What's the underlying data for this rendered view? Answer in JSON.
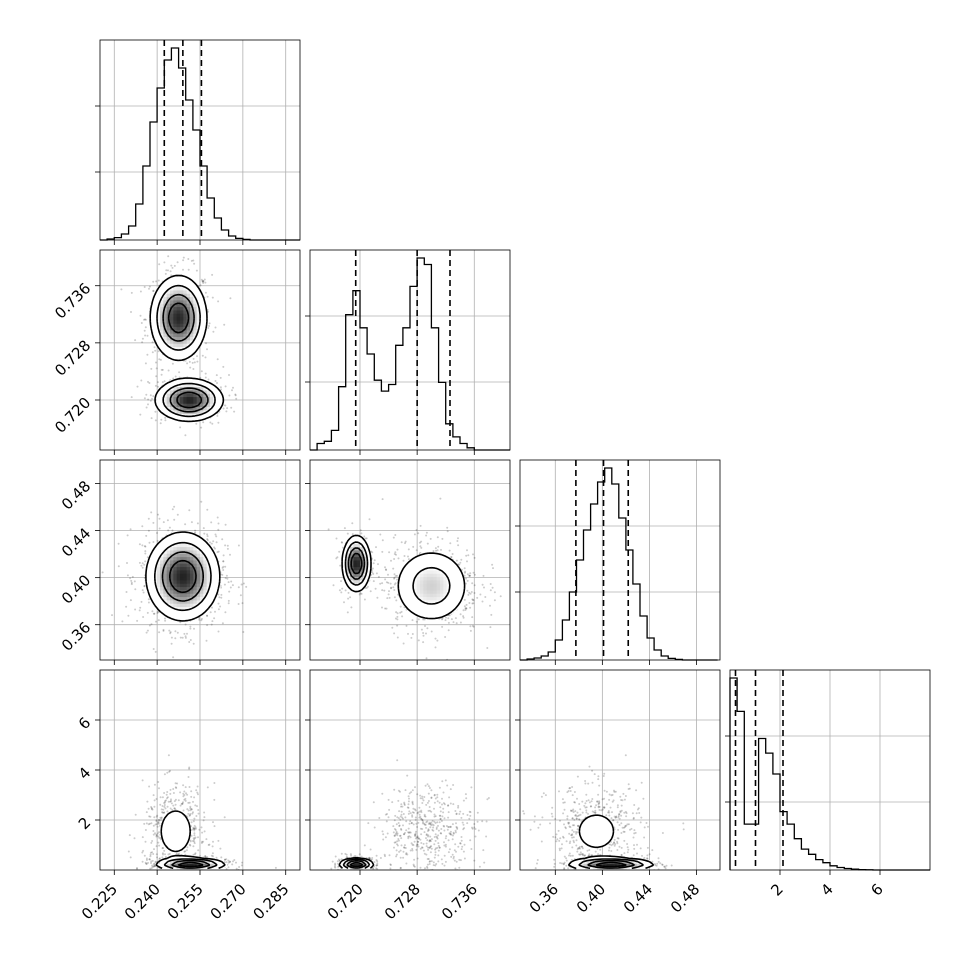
{
  "chart_data": {
    "type": "corner",
    "grid": true,
    "colors": {
      "line": "#000000",
      "grid": "#b0b0b0",
      "scatter": "#000000"
    },
    "parameters": [
      {
        "range": [
          0.22,
          0.29
        ],
        "ticks": [
          0.225,
          0.24,
          0.255,
          0.27,
          0.285
        ],
        "tick_labels": [
          "0.225",
          "0.240",
          "0.255",
          "0.270",
          "0.285"
        ],
        "mean": 0.249,
        "sd": 0.0065,
        "quantiles": [
          0.2425,
          0.249,
          0.2555
        ]
      },
      {
        "range": [
          0.713,
          0.741
        ],
        "ticks": [
          0.72,
          0.728,
          0.736
        ],
        "tick_labels": [
          "0.720",
          "0.728",
          "0.736"
        ],
        "quantiles": [
          0.7194,
          0.728,
          0.7326
        ]
      },
      {
        "range": [
          0.33,
          0.5
        ],
        "ticks": [
          0.36,
          0.4,
          0.44,
          0.48
        ],
        "tick_labels": [
          "0.36",
          "0.40",
          "0.44",
          "0.48"
        ],
        "mean": 0.401,
        "sd": 0.019,
        "quantiles": [
          0.3775,
          0.401,
          0.422
        ]
      },
      {
        "range": [
          0.0,
          8.0
        ],
        "ticks": [
          2,
          4,
          6
        ],
        "tick_labels": [
          "2",
          "4",
          "6"
        ],
        "quantiles": [
          0.22,
          1.02,
          2.12
        ]
      }
    ],
    "histograms": [
      {
        "bins": [
          0.22,
          0.2225,
          0.225,
          0.2275,
          0.23,
          0.2325,
          0.235,
          0.2375,
          0.24,
          0.2425,
          0.245,
          0.2475,
          0.25,
          0.2525,
          0.255,
          0.2575,
          0.26,
          0.2625,
          0.265,
          0.2675,
          0.27,
          0.2725,
          0.275,
          0.2775,
          0.28,
          0.2825,
          0.285,
          0.2875,
          0.29
        ],
        "counts": [
          0,
          0.005,
          0.012,
          0.03,
          0.07,
          0.18,
          0.37,
          0.59,
          0.76,
          0.9,
          0.96,
          0.86,
          0.7,
          0.55,
          0.37,
          0.21,
          0.11,
          0.05,
          0.02,
          0.008,
          0.003,
          0,
          0,
          0,
          0,
          0,
          0,
          0
        ]
      },
      {
        "bins": [
          0.713,
          0.714,
          0.715,
          0.716,
          0.717,
          0.718,
          0.719,
          0.72,
          0.721,
          0.722,
          0.723,
          0.724,
          0.725,
          0.726,
          0.727,
          0.728,
          0.729,
          0.73,
          0.731,
          0.732,
          0.733,
          0.734,
          0.735,
          0.736,
          0.737,
          0.738,
          0.739,
          0.74,
          0.741
        ],
        "counts": [
          0,
          0.03,
          0.04,
          0.09,
          0.29,
          0.62,
          0.73,
          0.56,
          0.44,
          0.32,
          0.27,
          0.3,
          0.48,
          0.56,
          0.75,
          0.88,
          0.85,
          0.56,
          0.31,
          0.12,
          0.06,
          0.03,
          0.01,
          0,
          0,
          0,
          0,
          0
        ]
      },
      {
        "bins": [
          0.33,
          0.336,
          0.342,
          0.348,
          0.354,
          0.36,
          0.366,
          0.372,
          0.378,
          0.384,
          0.39,
          0.396,
          0.402,
          0.408,
          0.414,
          0.42,
          0.426,
          0.432,
          0.438,
          0.444,
          0.45,
          0.456,
          0.462,
          0.468,
          0.474,
          0.48,
          0.486,
          0.492,
          0.498
        ],
        "counts": [
          0,
          0.005,
          0.01,
          0.02,
          0.04,
          0.1,
          0.2,
          0.34,
          0.5,
          0.65,
          0.78,
          0.89,
          0.96,
          0.88,
          0.71,
          0.55,
          0.38,
          0.22,
          0.11,
          0.05,
          0.02,
          0.008,
          0.003,
          0,
          0,
          0,
          0,
          0
        ]
      },
      {
        "bins": [
          0.0,
          0.286,
          0.571,
          0.857,
          1.143,
          1.429,
          1.714,
          2.0,
          2.286,
          2.571,
          2.857,
          3.143,
          3.429,
          3.714,
          4.0,
          4.286,
          4.571,
          4.857,
          5.143,
          5.429,
          5.714,
          6.0,
          6.286,
          6.571,
          6.857,
          7.143,
          7.429,
          7.714,
          8.0
        ],
        "counts": [
          0.92,
          0.76,
          0.22,
          0.22,
          0.63,
          0.56,
          0.46,
          0.28,
          0.22,
          0.15,
          0.1,
          0.075,
          0.05,
          0.035,
          0.02,
          0.012,
          0.007,
          0.004,
          0.002,
          0.001,
          0,
          0,
          0,
          0,
          0,
          0,
          0,
          0
        ]
      }
    ],
    "pairs": [
      {
        "x": 0,
        "y": 1,
        "modes": [
          {
            "x": 0.2475,
            "y": 0.7315,
            "sx": 0.005,
            "sy": 0.003,
            "w": 0.62
          },
          {
            "x": 0.2512,
            "y": 0.72,
            "sx": 0.006,
            "sy": 0.0015,
            "w": 0.38
          }
        ]
      },
      {
        "x": 0,
        "y": 2,
        "modes": [
          {
            "x": 0.249,
            "y": 0.401,
            "sx": 0.0065,
            "sy": 0.019,
            "w": 1.0
          }
        ]
      },
      {
        "x": 1,
        "y": 2,
        "modes": [
          {
            "x": 0.7195,
            "y": 0.412,
            "sx": 0.001,
            "sy": 0.012,
            "w": 0.33
          },
          {
            "x": 0.73,
            "y": 0.393,
            "sx": 0.003,
            "sy": 0.018,
            "w": 0.67
          }
        ]
      },
      {
        "x": 0,
        "y": 3,
        "modes": [
          {
            "x": 0.2465,
            "y": 1.55,
            "sx": 0.005,
            "sy": 0.8,
            "w": 0.55
          },
          {
            "x": 0.252,
            "y": 0.22,
            "sx": 0.006,
            "sy": 0.13,
            "w": 0.45
          }
        ]
      },
      {
        "x": 1,
        "y": 3,
        "modes": [
          {
            "x": 0.7295,
            "y": 1.6,
            "sx": 0.003,
            "sy": 0.8,
            "w": 0.55
          },
          {
            "x": 0.7195,
            "y": 0.22,
            "sx": 0.0012,
            "sy": 0.13,
            "w": 0.45
          }
        ]
      },
      {
        "x": 2,
        "y": 3,
        "modes": [
          {
            "x": 0.395,
            "y": 1.55,
            "sx": 0.018,
            "sy": 0.8,
            "w": 0.55
          },
          {
            "x": 0.408,
            "y": 0.22,
            "sx": 0.018,
            "sy": 0.13,
            "w": 0.45
          }
        ]
      }
    ]
  }
}
